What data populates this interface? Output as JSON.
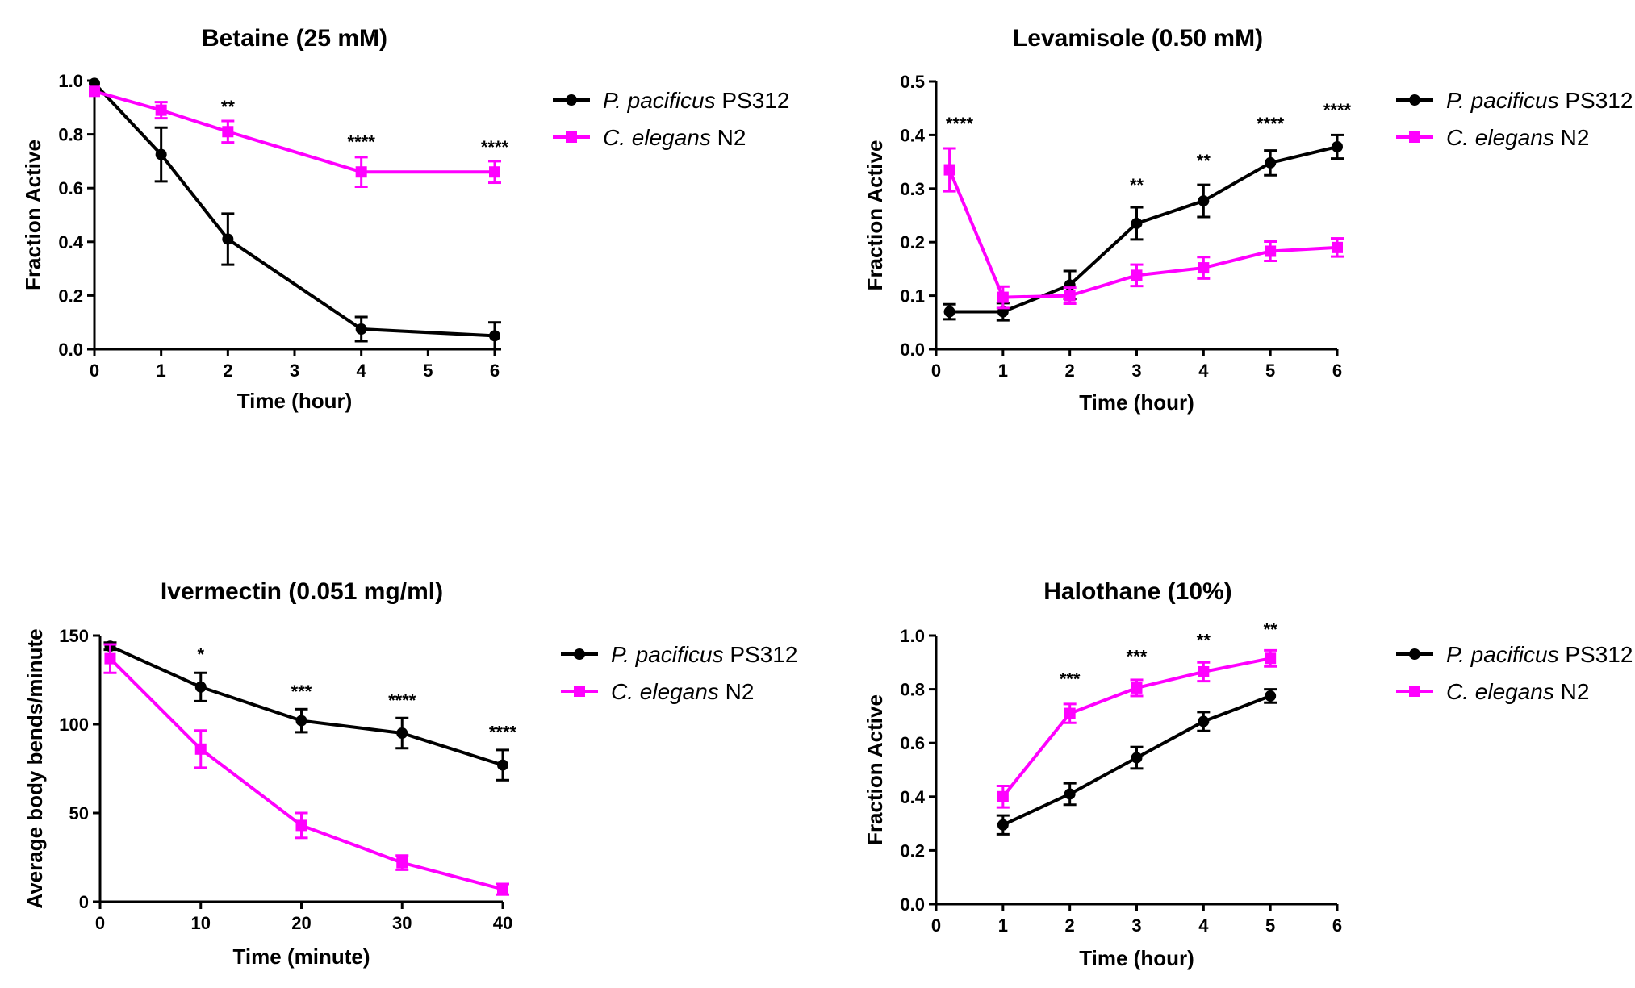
{
  "colors": {
    "ps312": "#000000",
    "n2": "#ff00ff"
  },
  "chart_data": [
    {
      "type": "line",
      "title": "Betaine (25 mM)",
      "xlabel": "Time (hour)",
      "ylabel": "Fraction Active",
      "xlim": [
        0,
        6
      ],
      "ylim": [
        0,
        1.0
      ],
      "xticks": [
        "0",
        "1",
        "2",
        "3",
        "4",
        "5",
        "6"
      ],
      "yticks": [
        "0.0",
        "0.2",
        "0.4",
        "0.6",
        "0.8",
        "1.0"
      ],
      "legend": [
        {
          "italic": "P. pacificus",
          "rest": " PS312"
        },
        {
          "italic": "C. elegans",
          "rest": " N2"
        }
      ],
      "series": [
        {
          "key": "ps312",
          "marker": "circle",
          "x": [
            0,
            1,
            2,
            4,
            6
          ],
          "y": [
            0.99,
            0.725,
            0.41,
            0.075,
            0.05
          ],
          "err": [
            0,
            0.1,
            0.095,
            0.045,
            0.05
          ]
        },
        {
          "key": "n2",
          "marker": "square",
          "x": [
            0,
            1,
            2,
            4,
            6
          ],
          "y": [
            0.96,
            0.89,
            0.81,
            0.66,
            0.66
          ],
          "err": [
            0,
            0.03,
            0.04,
            0.055,
            0.04
          ]
        }
      ],
      "annotations": [
        {
          "x": 2,
          "y": 0.88,
          "text": "**"
        },
        {
          "x": 4,
          "y": 0.75,
          "text": "****"
        },
        {
          "x": 6,
          "y": 0.73,
          "text": "****"
        }
      ]
    },
    {
      "type": "line",
      "title": "Levamisole (0.50 mM)",
      "xlabel": "Time (hour)",
      "ylabel": "Fraction Active",
      "xlim": [
        0,
        6
      ],
      "ylim": [
        0,
        0.5
      ],
      "xticks": [
        "0",
        "1",
        "2",
        "3",
        "4",
        "5",
        "6"
      ],
      "yticks": [
        "0.0",
        "0.1",
        "0.2",
        "0.3",
        "0.4",
        "0.5"
      ],
      "legend": [
        {
          "italic": "P. pacificus",
          "rest": " PS312"
        },
        {
          "italic": "C. elegans",
          "rest": " N2"
        }
      ],
      "series": [
        {
          "key": "ps312",
          "marker": "circle",
          "x": [
            0.2,
            1,
            2,
            3,
            4,
            5,
            6
          ],
          "y": [
            0.07,
            0.07,
            0.12,
            0.235,
            0.277,
            0.348,
            0.378
          ],
          "err": [
            0.014,
            0.016,
            0.026,
            0.03,
            0.03,
            0.023,
            0.022
          ]
        },
        {
          "key": "n2",
          "marker": "square",
          "x": [
            0.2,
            1,
            2,
            3,
            4,
            5,
            6
          ],
          "y": [
            0.335,
            0.097,
            0.1,
            0.138,
            0.152,
            0.183,
            0.19
          ],
          "err": [
            0.04,
            0.02,
            0.015,
            0.02,
            0.02,
            0.018,
            0.017
          ]
        }
      ],
      "annotations": [
        {
          "x": 0.35,
          "y": 0.41,
          "text": "****"
        },
        {
          "x": 3,
          "y": 0.295,
          "text": "**"
        },
        {
          "x": 4,
          "y": 0.34,
          "text": "**"
        },
        {
          "x": 5,
          "y": 0.41,
          "text": "****"
        },
        {
          "x": 6,
          "y": 0.435,
          "text": "****"
        }
      ]
    },
    {
      "type": "line",
      "title": "Ivermectin (0.051 mg/ml)",
      "xlabel": "Time (minute)",
      "ylabel": "Average body bends/minute",
      "xlim": [
        0,
        40
      ],
      "ylim": [
        0,
        150
      ],
      "xticks": [
        "0",
        "10",
        "20",
        "30",
        "40"
      ],
      "yticks": [
        "0",
        "50",
        "100",
        "150"
      ],
      "legend": [
        {
          "italic": "P. pacificus",
          "rest": " PS312"
        },
        {
          "italic": "C. elegans",
          "rest": " N2"
        }
      ],
      "series": [
        {
          "key": "ps312",
          "marker": "circle",
          "x": [
            1,
            10,
            20,
            30,
            40
          ],
          "y": [
            144,
            121,
            102,
            95,
            77
          ],
          "err": [
            2,
            8,
            6.5,
            8.5,
            8.5
          ]
        },
        {
          "key": "n2",
          "marker": "square",
          "x": [
            1,
            10,
            20,
            30,
            40
          ],
          "y": [
            137,
            86,
            43,
            22,
            7
          ],
          "err": [
            8,
            10.5,
            7,
            4,
            3
          ]
        }
      ],
      "annotations": [
        {
          "x": 10,
          "y": 136,
          "text": "*"
        },
        {
          "x": 20,
          "y": 115,
          "text": "***"
        },
        {
          "x": 30,
          "y": 110,
          "text": "****"
        },
        {
          "x": 40,
          "y": 92,
          "text": "****"
        }
      ]
    },
    {
      "type": "line",
      "title": "Halothane (10%)",
      "xlabel": "Time (hour)",
      "ylabel": "Fraction Active",
      "xlim": [
        0,
        6
      ],
      "ylim": [
        0,
        1.0
      ],
      "xticks": [
        "0",
        "1",
        "2",
        "3",
        "4",
        "5",
        "6"
      ],
      "yticks": [
        "0.0",
        "0.2",
        "0.4",
        "0.6",
        "0.8",
        "1.0"
      ],
      "legend": [
        {
          "italic": "P. pacificus",
          "rest": " PS312"
        },
        {
          "italic": "C. elegans",
          "rest": " N2"
        }
      ],
      "series": [
        {
          "key": "ps312",
          "marker": "circle",
          "x": [
            1,
            2,
            3,
            4,
            5
          ],
          "y": [
            0.295,
            0.41,
            0.545,
            0.68,
            0.775
          ],
          "err": [
            0.035,
            0.04,
            0.04,
            0.035,
            0.025
          ]
        },
        {
          "key": "n2",
          "marker": "square",
          "x": [
            1,
            2,
            3,
            4,
            5
          ],
          "y": [
            0.4,
            0.71,
            0.805,
            0.865,
            0.915
          ],
          "err": [
            0.04,
            0.035,
            0.03,
            0.035,
            0.03
          ]
        }
      ],
      "annotations": [
        {
          "x": 2,
          "y": 0.815,
          "text": "***"
        },
        {
          "x": 3,
          "y": 0.9,
          "text": "***"
        },
        {
          "x": 4,
          "y": 0.96,
          "text": "**"
        },
        {
          "x": 5,
          "y": 1.0,
          "text": "**"
        }
      ]
    }
  ]
}
